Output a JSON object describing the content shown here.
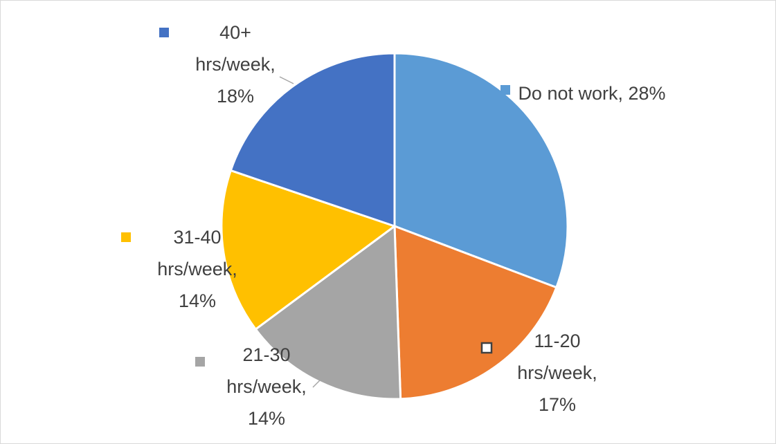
{
  "chart_data": {
    "type": "pie",
    "values": [
      28,
      17,
      14,
      14,
      18
    ],
    "value_labels": [
      "Do not work, 28%",
      "11-20 hrs/week, 17%",
      "21-30 hrs/week, 14%",
      "31-40 hrs/week, 14%",
      "40+ hrs/week, 18%"
    ],
    "colors": [
      "#5b9bd5",
      "#ed7d31",
      "#a5a5a5",
      "#ffc000",
      "#4472c4"
    ],
    "start_angle": 0,
    "direction": "clockwise"
  }
}
